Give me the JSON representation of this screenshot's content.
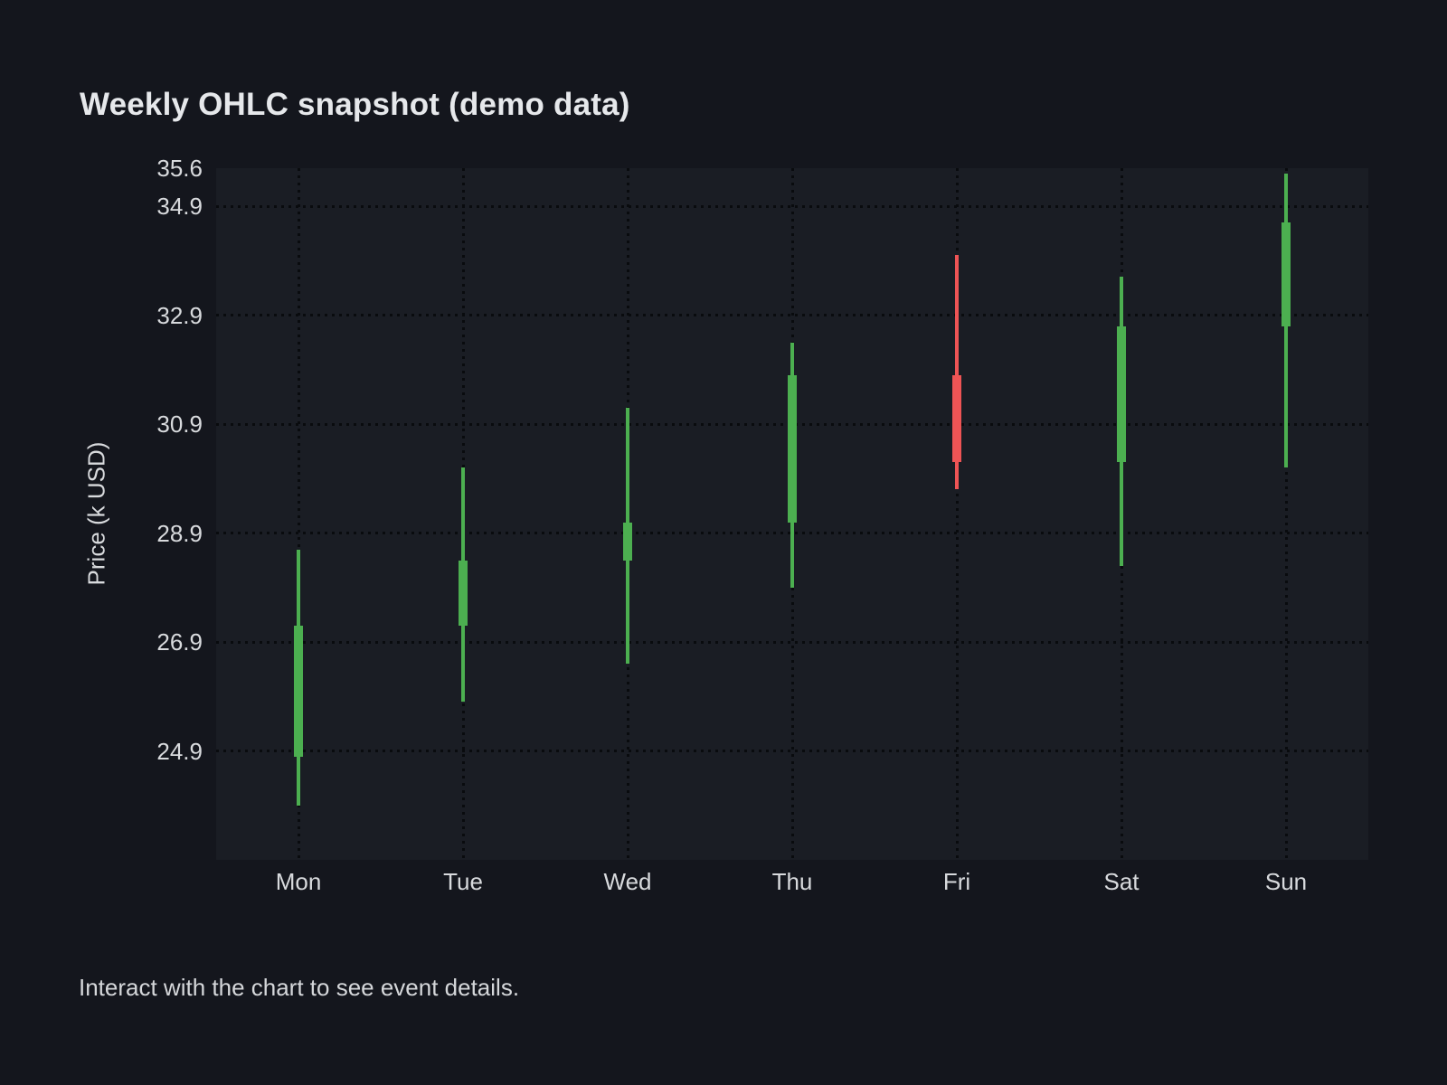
{
  "header": {
    "title": "Weekly OHLC snapshot (demo data)"
  },
  "footer": {
    "note": "Interact with the chart to see event details."
  },
  "chart_data": {
    "type": "candlestick",
    "title": "Weekly OHLC snapshot (demo data)",
    "xlabel": "",
    "ylabel": "Price (k USD)",
    "categories": [
      "Mon",
      "Tue",
      "Wed",
      "Thu",
      "Fri",
      "Sat",
      "Sun"
    ],
    "ohlc": [
      {
        "day": "Mon",
        "open": 24.8,
        "high": 28.6,
        "low": 23.9,
        "close": 27.2,
        "direction": "up"
      },
      {
        "day": "Tue",
        "open": 27.2,
        "high": 30.1,
        "low": 25.8,
        "close": 28.4,
        "direction": "up"
      },
      {
        "day": "Wed",
        "open": 28.4,
        "high": 31.2,
        "low": 26.5,
        "close": 29.1,
        "direction": "up"
      },
      {
        "day": "Thu",
        "open": 29.1,
        "high": 32.4,
        "low": 27.9,
        "close": 31.8,
        "direction": "up"
      },
      {
        "day": "Fri",
        "open": 31.8,
        "high": 34.0,
        "low": 29.7,
        "close": 30.2,
        "direction": "down"
      },
      {
        "day": "Sat",
        "open": 30.2,
        "high": 33.6,
        "low": 28.3,
        "close": 32.7,
        "direction": "up"
      },
      {
        "day": "Sun",
        "open": 32.7,
        "high": 35.5,
        "low": 30.1,
        "close": 34.6,
        "direction": "up"
      }
    ],
    "y_ticks": [
      35.6,
      34.9,
      32.9,
      30.9,
      28.9,
      26.9,
      24.9
    ],
    "ylim": [
      22.9,
      35.6
    ],
    "grid": "dotted",
    "legend_position": "none",
    "colors": {
      "up": "#4caf50",
      "down": "#ee5455",
      "background": "#14161d",
      "plot_background": "#1a1d24",
      "gridline": "#090b0e",
      "text": "#d8dadd",
      "title_text": "#e6e8eb"
    }
  }
}
